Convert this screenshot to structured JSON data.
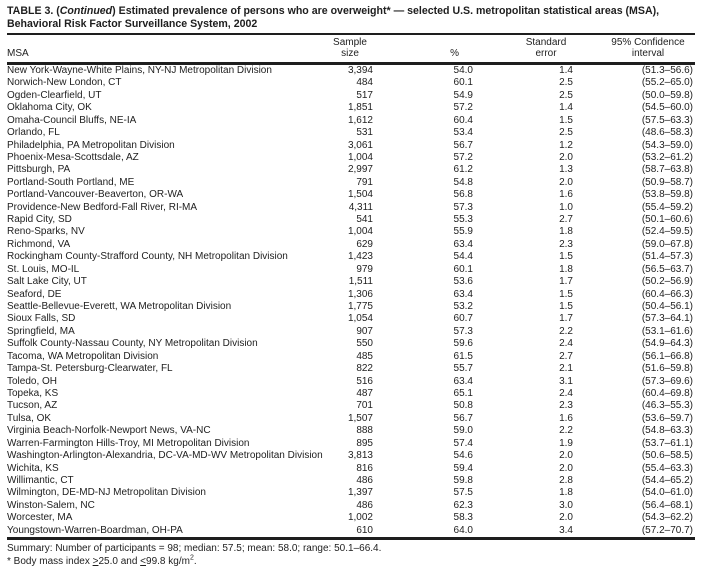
{
  "title": {
    "line1_prefix": "TABLE 3. (",
    "continued": "Continued",
    "line1_suffix": ") Estimated prevalence of persons who are overweight* — selected U.S. metropolitan statistical areas (MSA),",
    "line2": "Behavioral Risk Factor Surveillance System, 2002"
  },
  "table": {
    "columns": {
      "msa": "MSA",
      "sample_line1": "Sample",
      "sample_line2": "size",
      "pct": "%",
      "se_line1": "Standard",
      "se_line2": "error",
      "ci_line1": "95% Confidence",
      "ci_line2": "interval"
    },
    "rows": [
      [
        "New York-Wayne-White Plains, NY-NJ Metropolitan Division",
        "3,394",
        "54.0",
        "1.4",
        "(51.3–56.6)"
      ],
      [
        "Norwich-New London, CT",
        "484",
        "60.1",
        "2.5",
        "(55.2–65.0)"
      ],
      [
        "Ogden-Clearfield, UT",
        "517",
        "54.9",
        "2.5",
        "(50.0–59.8)"
      ],
      [
        "Oklahoma City, OK",
        "1,851",
        "57.2",
        "1.4",
        "(54.5–60.0)"
      ],
      [
        "Omaha-Council Bluffs, NE-IA",
        "1,612",
        "60.4",
        "1.5",
        "(57.5–63.3)"
      ],
      [
        "Orlando, FL",
        "531",
        "53.4",
        "2.5",
        "(48.6–58.3)"
      ],
      [
        "Philadelphia, PA Metropolitan Division",
        "3,061",
        "56.7",
        "1.2",
        "(54.3–59.0)"
      ],
      [
        "Phoenix-Mesa-Scottsdale, AZ",
        "1,004",
        "57.2",
        "2.0",
        "(53.2–61.2)"
      ],
      [
        "Pittsburgh, PA",
        "2,997",
        "61.2",
        "1.3",
        "(58.7–63.8)"
      ],
      [
        "Portland-South Portland, ME",
        "791",
        "54.8",
        "2.0",
        "(50.9–58.7)"
      ],
      [
        "Portland-Vancouver-Beaverton, OR-WA",
        "1,504",
        "56.8",
        "1.6",
        "(53.8–59.8)"
      ],
      [
        "Providence-New Bedford-Fall River, RI-MA",
        "4,311",
        "57.3",
        "1.0",
        "(55.4–59.2)"
      ],
      [
        "Rapid City, SD",
        "541",
        "55.3",
        "2.7",
        "(50.1–60.6)"
      ],
      [
        "Reno-Sparks, NV",
        "1,004",
        "55.9",
        "1.8",
        "(52.4–59.5)"
      ],
      [
        "Richmond, VA",
        "629",
        "63.4",
        "2.3",
        "(59.0–67.8)"
      ],
      [
        "Rockingham County-Strafford County, NH Metropolitan Division",
        "1,423",
        "54.4",
        "1.5",
        "(51.4–57.3)"
      ],
      [
        "St. Louis, MO-IL",
        "979",
        "60.1",
        "1.8",
        "(56.5–63.7)"
      ],
      [
        "Salt Lake City, UT",
        "1,511",
        "53.6",
        "1.7",
        "(50.2–56.9)"
      ],
      [
        "Seaford, DE",
        "1,306",
        "63.4",
        "1.5",
        "(60.4–66.3)"
      ],
      [
        "Seattle-Bellevue-Everett, WA Metropolitan Division",
        "1,775",
        "53.2",
        "1.5",
        "(50.4–56.1)"
      ],
      [
        "Sioux Falls, SD",
        "1,054",
        "60.7",
        "1.7",
        "(57.3–64.1)"
      ],
      [
        "Springfield, MA",
        "907",
        "57.3",
        "2.2",
        "(53.1–61.6)"
      ],
      [
        "Suffolk County-Nassau County, NY Metropolitan Division",
        "550",
        "59.6",
        "2.4",
        "(54.9–64.3)"
      ],
      [
        "Tacoma, WA Metropolitan Division",
        "485",
        "61.5",
        "2.7",
        "(56.1–66.8)"
      ],
      [
        "Tampa-St. Petersburg-Clearwater, FL",
        "822",
        "55.7",
        "2.1",
        "(51.6–59.8)"
      ],
      [
        "Toledo, OH",
        "516",
        "63.4",
        "3.1",
        "(57.3–69.6)"
      ],
      [
        "Topeka, KS",
        "487",
        "65.1",
        "2.4",
        "(60.4–69.8)"
      ],
      [
        "Tucson, AZ",
        "701",
        "50.8",
        "2.3",
        "(46.3–55.3)"
      ],
      [
        "Tulsa, OK",
        "1,507",
        "56.7",
        "1.6",
        "(53.6–59.7)"
      ],
      [
        "Virginia Beach-Norfolk-Newport News, VA-NC",
        "888",
        "59.0",
        "2.2",
        "(54.8–63.3)"
      ],
      [
        "Warren-Farmington Hills-Troy, MI Metropolitan Division",
        "895",
        "57.4",
        "1.9",
        "(53.7–61.1)"
      ],
      [
        "Washington-Arlington-Alexandria, DC-VA-MD-WV Metropolitan Division",
        "3,813",
        "54.6",
        "2.0",
        "(50.6–58.5)"
      ],
      [
        "Wichita, KS",
        "816",
        "59.4",
        "2.0",
        "(55.4–63.3)"
      ],
      [
        "Willimantic, CT",
        "486",
        "59.8",
        "2.8",
        "(54.4–65.2)"
      ],
      [
        "Wilmington, DE-MD-NJ Metropolitan Division",
        "1,397",
        "57.5",
        "1.8",
        "(54.0–61.0)"
      ],
      [
        "Winston-Salem, NC",
        "486",
        "62.3",
        "3.0",
        "(56.4–68.1)"
      ],
      [
        "Worcester, MA",
        "1,002",
        "58.3",
        "2.0",
        "(54.3–62.2)"
      ],
      [
        "Youngstown-Warren-Boardman, OH-PA",
        "610",
        "64.0",
        "3.4",
        "(57.2–70.7)"
      ]
    ]
  },
  "summary": "Summary: Number of participants = 98; median: 57.5; mean: 58.0; range: 50.1–66.4.",
  "footnote": {
    "p1": "* Body mass index ",
    "gte": ">",
    "p2": "25.0 and ",
    "lte": "<",
    "p3": "99.8 kg/m",
    "sup": "2",
    "p4": "."
  }
}
